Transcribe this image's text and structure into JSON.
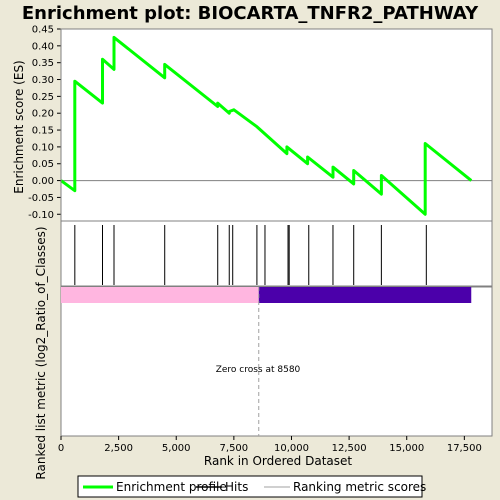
{
  "chart_data": {
    "type": "line",
    "title": "Enrichment plot: BIOCARTA_TNFR2_PATHWAY",
    "ylabel_top": "Enrichment score (ES)",
    "ylabel_bottom": "Ranked list metric (log2_Ratio_of_Classes)",
    "xlabel": "Rank in Ordered Dataset",
    "xlim": [
      0,
      18700
    ],
    "ylim": [
      -0.12,
      0.45
    ],
    "x_ticks": [
      "0",
      "2,500",
      "5,000",
      "7,500",
      "10,000",
      "12,500",
      "15,000",
      "17,500"
    ],
    "x_tick_values": [
      0,
      2500,
      5000,
      7500,
      10000,
      12500,
      15000,
      17500
    ],
    "y_ticks": [
      "-0.10",
      "-0.05",
      "0.00",
      "0.05",
      "0.10",
      "0.15",
      "0.20",
      "0.25",
      "0.30",
      "0.35",
      "0.40",
      "0.45"
    ],
    "y_tick_values": [
      -0.1,
      -0.05,
      0.0,
      0.05,
      0.1,
      0.15,
      0.2,
      0.25,
      0.3,
      0.35,
      0.4,
      0.45
    ],
    "series": [
      {
        "name": "Enrichment profile",
        "color": "#00ff00",
        "x": [
          0,
          600,
          600,
          1800,
          1800,
          2300,
          2300,
          4500,
          4500,
          6800,
          6800,
          7300,
          7300,
          7500,
          7500,
          8500,
          8500,
          9800,
          9800,
          10700,
          10700,
          11800,
          11800,
          12700,
          12700,
          13900,
          13900,
          15800,
          15800,
          17800
        ],
        "y": [
          0.0,
          -0.03,
          0.295,
          0.23,
          0.36,
          0.33,
          0.425,
          0.305,
          0.345,
          0.22,
          0.23,
          0.2,
          0.205,
          0.21,
          0.21,
          0.16,
          0.16,
          0.08,
          0.1,
          0.05,
          0.07,
          0.01,
          0.04,
          -0.01,
          0.03,
          -0.04,
          0.015,
          -0.1,
          0.11,
          0.0
        ]
      }
    ],
    "hits": [
      600,
      1800,
      2300,
      4500,
      6800,
      7300,
      7450,
      8500,
      8850,
      9850,
      9900,
      10750,
      11800,
      12700,
      13900,
      15850
    ],
    "metric_bar": {
      "positive_color": "#ffb6e0",
      "negative_color": "#4b00aa",
      "start": 0,
      "zero_cross": 8580,
      "end": 17800
    },
    "annotation": "Zero cross at 8580",
    "legend": {
      "placement": "bottom",
      "items": [
        {
          "label": "Enrichment profile",
          "color": "#00ff00"
        },
        {
          "label": "Hits",
          "color": "#000000"
        },
        {
          "label": "Ranking metric scores",
          "color": "#c0c0c0"
        }
      ]
    },
    "grid": false
  }
}
